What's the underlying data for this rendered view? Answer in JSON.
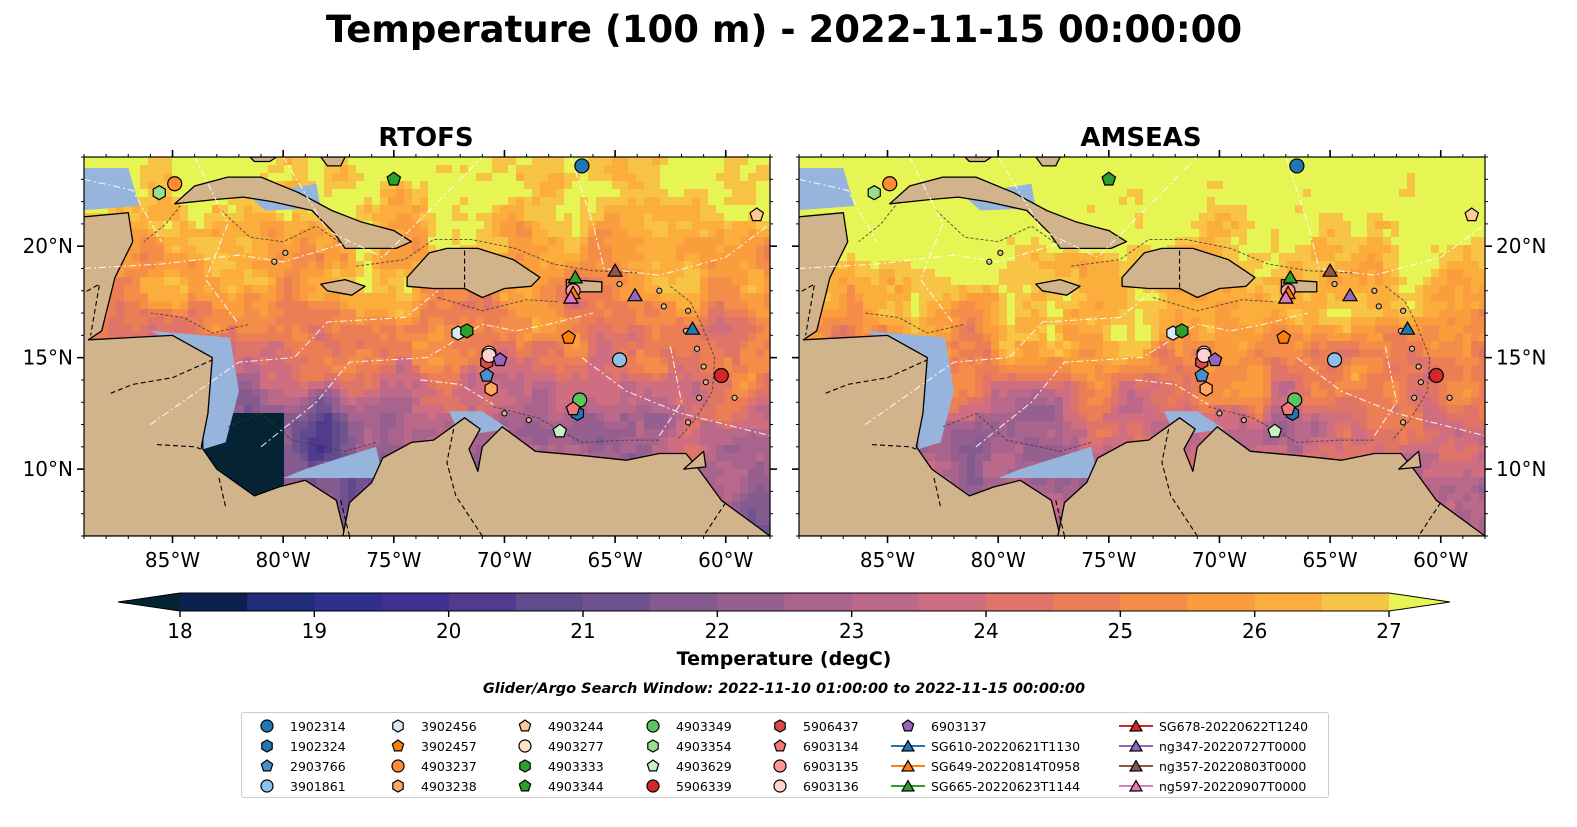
{
  "figure": {
    "title": "Temperature (100 m) - 2022-11-15 00:00:00",
    "search_window": "Glider/Argo Search Window: 2022-11-10 01:00:00 to 2022-11-15 00:00:00"
  },
  "colors": {
    "land": "#d2b48c",
    "shallow_water": "#96b4dc",
    "cmap": [
      "#042333",
      "#0d2150",
      "#212c78",
      "#2f2f8e",
      "#40308f",
      "#523a8f",
      "#614b8c",
      "#715290",
      "#835b8f",
      "#955f8f",
      "#a8648d",
      "#bb698b",
      "#cf6d81",
      "#df7468",
      "#ec7e55",
      "#f48d48",
      "#f99d3d",
      "#fbae3b",
      "#f8c445",
      "#f6d94c",
      "#e6f553"
    ]
  },
  "chart_data": [
    {
      "type": "heatmap",
      "title": "RTOFS",
      "model": "RTOFS",
      "xlim": [
        -89,
        -58
      ],
      "ylim": [
        7,
        24
      ],
      "xticks": [
        -85,
        -80,
        -75,
        -70,
        -65,
        -60
      ],
      "xtick_labels": [
        "85°W",
        "80°W",
        "75°W",
        "70°W",
        "65°W",
        "60°W"
      ],
      "yticks": [
        10,
        15,
        20
      ],
      "ytick_labels": [
        "10°N",
        "15°N",
        "20°N"
      ],
      "ytick_side": "left",
      "field_bias": 0.0
    },
    {
      "type": "heatmap",
      "title": "AMSEAS",
      "model": "AMSEAS",
      "xlim": [
        -89,
        -58
      ],
      "ylim": [
        7,
        24
      ],
      "xticks": [
        -85,
        -80,
        -75,
        -70,
        -65,
        -60
      ],
      "xtick_labels": [
        "85°W",
        "80°W",
        "75°W",
        "70°W",
        "65°W",
        "60°W"
      ],
      "yticks": [
        10,
        15,
        20
      ],
      "ytick_labels": [
        "10°N",
        "15°N",
        "20°N"
      ],
      "ytick_side": "right",
      "field_bias": 0.7
    }
  ],
  "colorbar": {
    "label": "Temperature (degC)",
    "min": 18,
    "max": 27,
    "step": 0.5,
    "ticks": [
      18,
      19,
      20,
      21,
      22,
      23,
      24,
      25,
      26,
      27
    ],
    "extend": "both"
  },
  "platforms": [
    {
      "name": "1902314",
      "marker": "circle",
      "color": "#1f77b4",
      "lon": -66.5,
      "lat": 23.6
    },
    {
      "name": "1902324",
      "marker": "hexagon",
      "color": "#1f77b4",
      "lon": -66.7,
      "lat": 12.5
    },
    {
      "name": "2903766",
      "marker": "pentagon",
      "color": "#4a90c8",
      "lon": -70.8,
      "lat": 14.2
    },
    {
      "name": "3901861",
      "marker": "circle",
      "color": "#8fc1e8",
      "lon": -64.8,
      "lat": 14.9
    },
    {
      "name": "3902456",
      "marker": "hexagon",
      "color": "#d6ebf7",
      "lon": -72.1,
      "lat": 16.1
    },
    {
      "name": "3902457",
      "marker": "pentagon",
      "color": "#ff7f0e",
      "lon": -67.1,
      "lat": 15.9
    },
    {
      "name": "4903237",
      "marker": "circle",
      "color": "#ff8c32",
      "lon": -84.9,
      "lat": 22.8
    },
    {
      "name": "4903238",
      "marker": "hexagon",
      "color": "#ffa75e",
      "lon": -70.6,
      "lat": 13.6
    },
    {
      "name": "4903244",
      "marker": "pentagon",
      "color": "#ffc896",
      "lon": -58.6,
      "lat": 21.4
    },
    {
      "name": "4903277",
      "marker": "circle",
      "color": "#fde4c8",
      "lon": -70.7,
      "lat": 15.2
    },
    {
      "name": "4903333",
      "marker": "hexagon",
      "color": "#2ca02c",
      "lon": -71.7,
      "lat": 16.2
    },
    {
      "name": "4903344",
      "marker": "pentagon",
      "color": "#2ca02c",
      "lon": -75.0,
      "lat": 23.0
    },
    {
      "name": "4903349",
      "marker": "circle",
      "color": "#5cc45c",
      "lon": -66.6,
      "lat": 13.1
    },
    {
      "name": "4903354",
      "marker": "hexagon",
      "color": "#98df8a",
      "lon": -85.6,
      "lat": 22.4
    },
    {
      "name": "4903629",
      "marker": "pentagon",
      "color": "#c8f0c0",
      "lon": -67.5,
      "lat": 11.7
    },
    {
      "name": "5906339",
      "marker": "circle",
      "color": "#d62728",
      "lon": -60.2,
      "lat": 14.2
    },
    {
      "name": "5906437",
      "marker": "hexagon",
      "color": "#e04848",
      "lon": -70.8,
      "lat": 14.8
    },
    {
      "name": "6903134",
      "marker": "pentagon",
      "color": "#f07878",
      "lon": -66.9,
      "lat": 12.7
    },
    {
      "name": "6903135",
      "marker": "circle",
      "color": "#ff9896",
      "lon": -66.9,
      "lat": 18.0
    },
    {
      "name": "6903136",
      "marker": "circle",
      "color": "#ffd2d2",
      "lon": -70.7,
      "lat": 15.1
    },
    {
      "name": "6903137",
      "marker": "pentagon",
      "color": "#9467bd",
      "lon": -70.2,
      "lat": 14.9
    },
    {
      "name": "SG610-20220621T1130",
      "marker": "triangle",
      "color": "#1f77b4",
      "lon": -61.5,
      "lat": 16.3
    },
    {
      "name": "SG649-20220814T0958",
      "marker": "triangle",
      "color": "#ff7f0e",
      "lon": -66.9,
      "lat": 17.9
    },
    {
      "name": "SG665-20220623T1144",
      "marker": "triangle",
      "color": "#2ca02c",
      "lon": -66.8,
      "lat": 18.6
    },
    {
      "name": "SG678-20220622T1240",
      "marker": "triangle",
      "color": "#d62728",
      "lon": -67.0,
      "lat": 17.7
    },
    {
      "name": "ng347-20220727T0000",
      "marker": "triangle",
      "color": "#9467bd",
      "lon": -64.1,
      "lat": 17.8
    },
    {
      "name": "ng357-20220803T0000",
      "marker": "triangle",
      "color": "#8c564b",
      "lon": -65.0,
      "lat": 18.9
    },
    {
      "name": "ng597-20220907T0000",
      "marker": "triangle",
      "color": "#e377c2",
      "lon": -67.0,
      "lat": 17.7
    }
  ]
}
